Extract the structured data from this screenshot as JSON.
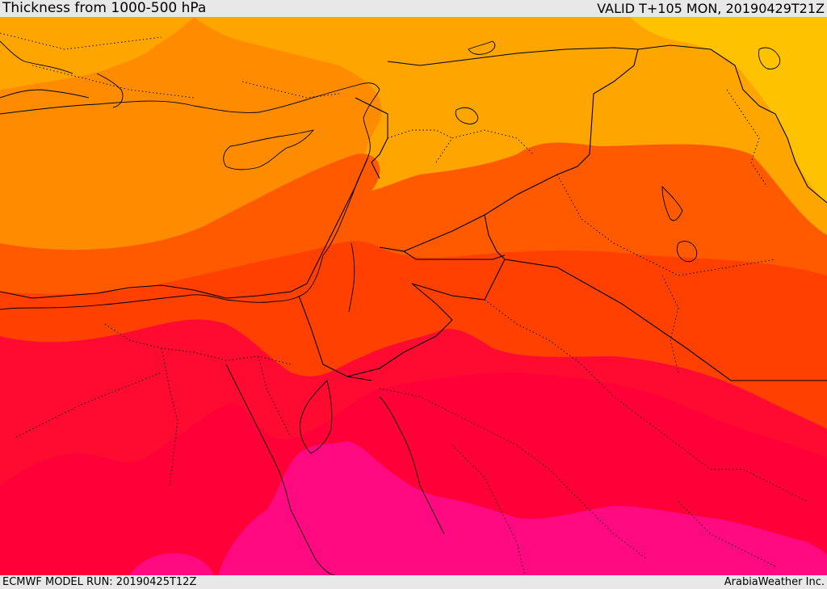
{
  "header": {
    "title": "Thickness from 1000-500 hPa",
    "valid": "VALID T+105 MON, 20190429T21Z"
  },
  "footer": {
    "model_run": "ECMWF MODEL RUN: 20190425T12Z",
    "credit": "ArabiaWeather Inc."
  },
  "colors": {
    "band_yellow": "#ffc200",
    "band_light_orange": "#ffa500",
    "band_orange": "#ff8c00",
    "band_dark_orange": "#ff5a00",
    "band_red_orange": "#ff4000",
    "band_red": "#ff0a30",
    "band_crimson": "#ff0038",
    "band_magenta": "#ff0a80",
    "border_line": "#000000"
  }
}
